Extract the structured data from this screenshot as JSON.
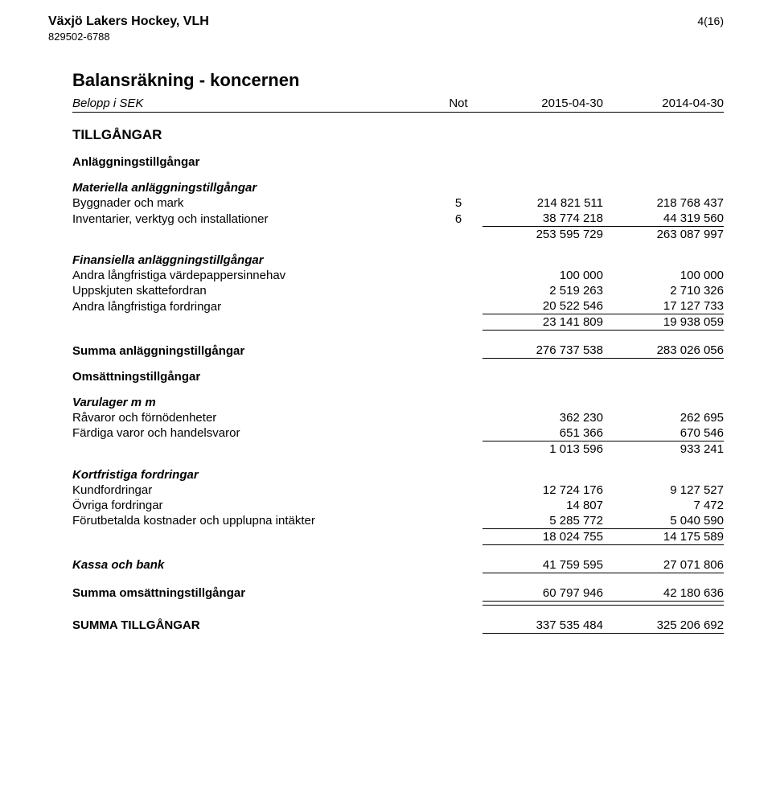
{
  "header": {
    "org_name": "Växjö Lakers Hockey, VLH",
    "org_id": "829502-6788",
    "page_no": "4(16)"
  },
  "title": "Balansräkning - koncernen",
  "col_head": {
    "label": "Belopp i SEK",
    "not": "Not",
    "c1": "2015-04-30",
    "c2": "2014-04-30"
  },
  "s_tillg": "TILLGÅNGAR",
  "s_anl": "Anläggningstillgångar",
  "s_mat": "Materiella anläggningstillgångar",
  "r_bygg": {
    "label": "Byggnader och mark",
    "not": "5",
    "c1": "214 821 511",
    "c2": "218 768 437"
  },
  "r_inv": {
    "label": "Inventarier, verktyg och installationer",
    "not": "6",
    "c1": "38 774 218",
    "c2": "44 319 560"
  },
  "r_matsum": {
    "c1": "253 595 729",
    "c2": "263 087 997"
  },
  "s_fin": "Finansiella anläggningstillgångar",
  "r_vpi": {
    "label": "Andra långfristiga värdepappersinnehav",
    "c1": "100 000",
    "c2": "100 000"
  },
  "r_usk": {
    "label": "Uppskjuten skattefordran",
    "c1": "2 519 263",
    "c2": "2 710 326"
  },
  "r_alf": {
    "label": "Andra långfristiga fordringar",
    "c1": "20 522 546",
    "c2": "17 127 733"
  },
  "r_finsum": {
    "c1": "23 141 809",
    "c2": "19 938 059"
  },
  "r_sumanl": {
    "label": "Summa anläggningstillgångar",
    "c1": "276 737 538",
    "c2": "283 026 056"
  },
  "s_oms": "Omsättningstillgångar",
  "s_var": "Varulager m m",
  "r_rav": {
    "label": "Råvaror och förnödenheter",
    "c1": "362 230",
    "c2": "262 695"
  },
  "r_far": {
    "label": "Färdiga varor och handelsvaror",
    "c1": "651 366",
    "c2": "670 546"
  },
  "r_varsum": {
    "c1": "1 013 596",
    "c2": "933 241"
  },
  "s_kf": "Kortfristiga fordringar",
  "r_kund": {
    "label": "Kundfordringar",
    "c1": "12 724 176",
    "c2": "9 127 527"
  },
  "r_ovr": {
    "label": "Övriga fordringar",
    "c1": "14 807",
    "c2": "7 472"
  },
  "r_for": {
    "label": "Förutbetalda kostnader och upplupna intäkter",
    "c1": "5 285 772",
    "c2": "5 040 590"
  },
  "r_kfsum": {
    "c1": "18 024 755",
    "c2": "14 175 589"
  },
  "r_kassa": {
    "label": "Kassa och bank",
    "c1": "41 759 595",
    "c2": "27 071 806"
  },
  "r_sumoms": {
    "label": "Summa omsättningstillgångar",
    "c1": "60 797 946",
    "c2": "42 180 636"
  },
  "r_sumtil": {
    "label": "SUMMA TILLGÅNGAR",
    "c1": "337 535 484",
    "c2": "325 206 692"
  }
}
